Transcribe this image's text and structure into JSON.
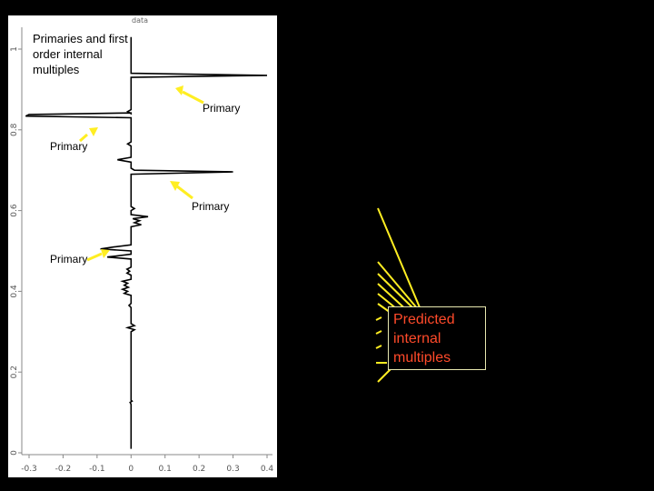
{
  "chart_data": {
    "type": "line",
    "title": "data",
    "xlim": [
      -0.3,
      0.4
    ],
    "ylim": [
      0,
      1.05
    ],
    "xticks": [
      "-0.3",
      "-0.2",
      "-0.1",
      "0",
      "0.1",
      "0.2",
      "0.3",
      "0.4"
    ],
    "yticks": [
      "0",
      "0.2",
      "0.4",
      "0.6",
      "0.8",
      "1"
    ],
    "xtick_values": [
      -0.3,
      -0.2,
      -0.1,
      0,
      0.1,
      0.2,
      0.3,
      0.4
    ],
    "ytick_values": [
      0,
      0.2,
      0.4,
      0.6,
      0.8,
      1.0
    ],
    "grid": false,
    "series": [
      {
        "values": [
          [
            0.0,
            0.01
          ],
          [
            0.0,
            0.12
          ],
          [
            -0.003,
            0.125
          ],
          [
            0.003,
            0.128
          ],
          [
            0.0,
            0.13
          ],
          [
            0.0,
            0.225
          ],
          [
            0.0,
            0.3
          ],
          [
            0.01,
            0.305
          ],
          [
            -0.01,
            0.31
          ],
          [
            0.01,
            0.315
          ],
          [
            0.0,
            0.32
          ],
          [
            0.0,
            0.36
          ],
          [
            -0.006,
            0.365
          ],
          [
            0.0,
            0.37
          ],
          [
            0.0,
            0.39
          ],
          [
            -0.02,
            0.395
          ],
          [
            -0.01,
            0.4
          ],
          [
            -0.025,
            0.405
          ],
          [
            -0.008,
            0.41
          ],
          [
            -0.02,
            0.415
          ],
          [
            -0.01,
            0.42
          ],
          [
            -0.025,
            0.425
          ],
          [
            0.0,
            0.43
          ],
          [
            0.0,
            0.44
          ],
          [
            -0.012,
            0.445
          ],
          [
            -0.004,
            0.45
          ],
          [
            -0.012,
            0.455
          ],
          [
            0.0,
            0.46
          ],
          [
            0.0,
            0.48
          ],
          [
            -0.07,
            0.485
          ],
          [
            0.0,
            0.492
          ],
          [
            0.0,
            0.5
          ],
          [
            -0.09,
            0.505
          ],
          [
            -0.05,
            0.51
          ],
          [
            0.0,
            0.515
          ],
          [
            0.0,
            0.56
          ],
          [
            0.03,
            0.565
          ],
          [
            0.01,
            0.57
          ],
          [
            0.025,
            0.575
          ],
          [
            0.005,
            0.58
          ],
          [
            0.05,
            0.585
          ],
          [
            0.0,
            0.59
          ],
          [
            0.0,
            0.6
          ],
          [
            0.01,
            0.605
          ],
          [
            0.0,
            0.61
          ],
          [
            0.0,
            0.69
          ],
          [
            0.3,
            0.696
          ],
          [
            0.01,
            0.7
          ],
          [
            0.0,
            0.705
          ],
          [
            0.0,
            0.72
          ],
          [
            -0.04,
            0.726
          ],
          [
            0.0,
            0.732
          ],
          [
            0.0,
            0.76
          ],
          [
            -0.01,
            0.765
          ],
          [
            0.0,
            0.77
          ],
          [
            0.0,
            0.83
          ],
          [
            -0.31,
            0.834
          ],
          [
            -0.3,
            0.838
          ],
          [
            0.0,
            0.842
          ],
          [
            0.0,
            0.84
          ],
          [
            -0.01,
            0.845
          ],
          [
            0.0,
            0.85
          ],
          [
            0.0,
            0.93
          ],
          [
            0.4,
            0.935
          ],
          [
            0.0,
            0.94
          ],
          [
            0.0,
            1.03
          ]
        ]
      }
    ],
    "annotations": {
      "box_label": "Primaries and first order internal multiples",
      "primary_labels": [
        "Primary",
        "Primary",
        "Primary",
        "Primary"
      ],
      "predicted_label": "Predicted internal multiples"
    }
  },
  "colors": {
    "background": "#000000",
    "plot_background": "#ffffff",
    "trace": "#000000",
    "arrow": "#ffee22",
    "predicted_text": "#ff4a2a"
  }
}
